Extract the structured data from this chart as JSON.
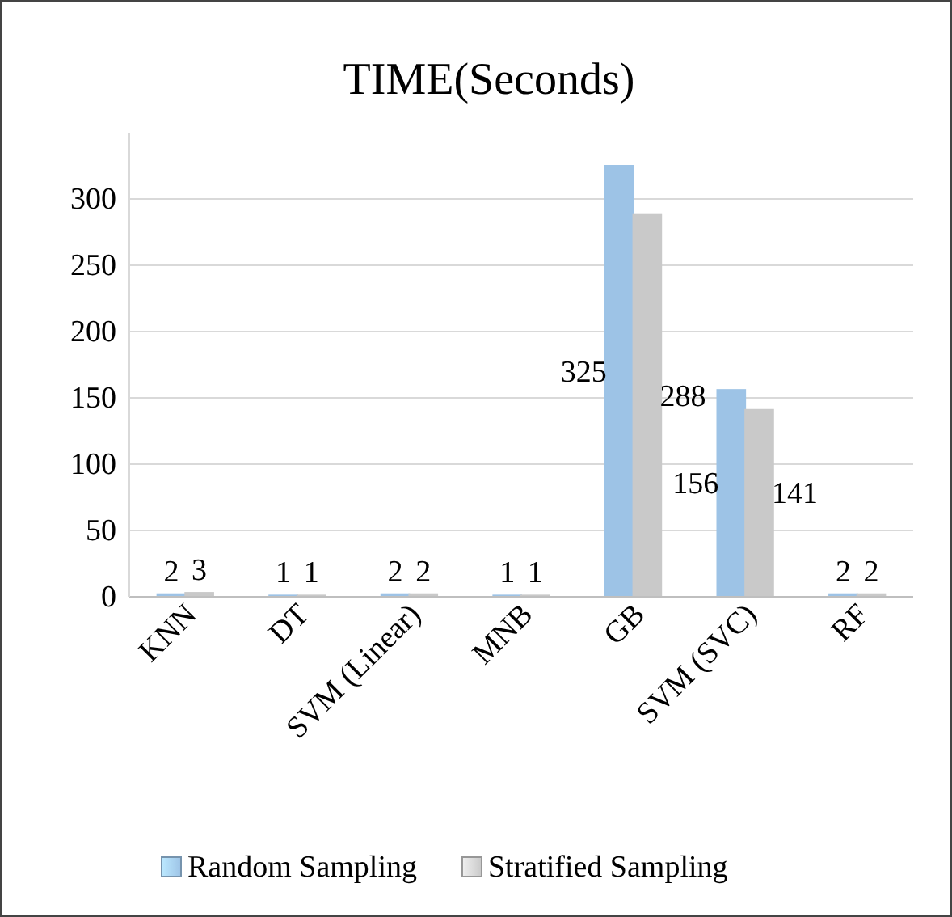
{
  "chart_data": {
    "type": "bar",
    "title": "TIME(Seconds)",
    "categories": [
      "KNN",
      "DT",
      "SVM (Linear)",
      "MNB",
      "GB",
      "SVM (SVC)",
      "RF"
    ],
    "series": [
      {
        "name": "Random Sampling",
        "color": "#9dc3e6",
        "values": [
          2,
          1,
          2,
          1,
          325,
          156,
          2
        ]
      },
      {
        "name": "Stratified Sampling",
        "color": "#c9c9c9",
        "values": [
          3,
          1,
          2,
          1,
          288,
          141,
          2
        ]
      }
    ],
    "ylim": [
      0,
      350
    ],
    "yticks": [
      0,
      50,
      100,
      150,
      200,
      250,
      300
    ],
    "grid": "y",
    "legend": "bottom",
    "data_labels": true
  }
}
